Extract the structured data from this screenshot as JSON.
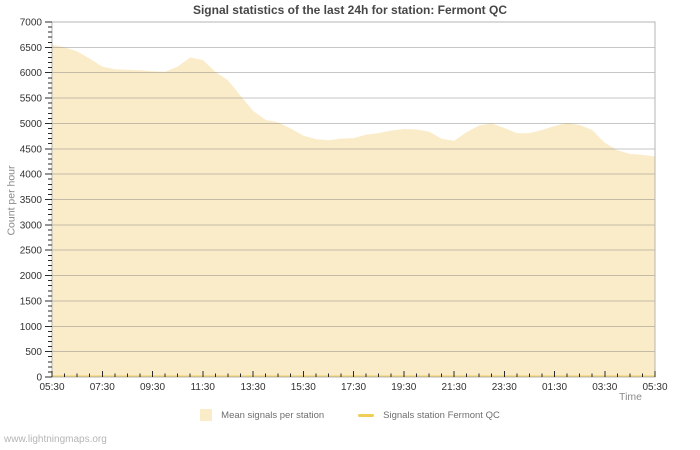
{
  "watermark": "www.lightningmaps.org",
  "chart_data": {
    "type": "area",
    "title": "Signal statistics of the last 24h for station: Fermont QC",
    "xlabel": "Time",
    "ylabel": "Count per hour",
    "ylim": [
      0,
      7000
    ],
    "y_major_step": 500,
    "y_minor_step": 100,
    "y_tick_labels": [
      "0",
      "500",
      "1000",
      "1500",
      "2000",
      "2500",
      "3000",
      "3500",
      "4000",
      "4500",
      "5000",
      "5500",
      "6000",
      "6500",
      "7000"
    ],
    "x_range_hours": 24,
    "x_major_every_hours": 2,
    "x_minor_every_hours": 0.5,
    "x_tick_labels": [
      "05:30",
      "07:30",
      "09:30",
      "11:30",
      "13:30",
      "15:30",
      "17:30",
      "19:30",
      "21:30",
      "23:30",
      "01:30",
      "03:30",
      "05:30"
    ],
    "grid": "horizontal-major",
    "legend_position": "bottom-center",
    "x_times": [
      "05:30",
      "06:00",
      "06:30",
      "07:00",
      "07:30",
      "08:00",
      "08:30",
      "09:00",
      "09:30",
      "10:00",
      "10:30",
      "11:00",
      "11:30",
      "12:00",
      "12:30",
      "13:00",
      "13:30",
      "14:00",
      "14:30",
      "15:00",
      "15:30",
      "16:00",
      "16:30",
      "17:00",
      "17:30",
      "18:00",
      "18:30",
      "19:00",
      "19:30",
      "20:00",
      "20:30",
      "21:00",
      "21:30",
      "22:00",
      "22:30",
      "23:00",
      "23:30",
      "00:00",
      "00:30",
      "01:00",
      "01:30",
      "02:00",
      "02:30",
      "03:00",
      "03:30",
      "04:00",
      "04:30",
      "05:00",
      "05:30"
    ],
    "series": [
      {
        "name": "Mean signals per station",
        "type": "area",
        "color": "#FBECC9",
        "values": [
          6550,
          6500,
          6420,
          6280,
          6120,
          6070,
          6060,
          6050,
          6030,
          6020,
          6120,
          6300,
          6250,
          6020,
          5850,
          5550,
          5250,
          5070,
          5020,
          4900,
          4760,
          4690,
          4670,
          4700,
          4710,
          4780,
          4810,
          4860,
          4890,
          4880,
          4840,
          4700,
          4655,
          4830,
          4960,
          5000,
          4910,
          4810,
          4810,
          4870,
          4950,
          5010,
          4970,
          4870,
          4620,
          4470,
          4400,
          4380,
          4350
        ]
      },
      {
        "name": "Signals station Fermont QC",
        "type": "line",
        "color": "#F0CE55",
        "values": [
          0,
          0,
          0,
          0,
          0,
          0,
          0,
          0,
          0,
          0,
          0,
          0,
          0,
          0,
          0,
          0,
          0,
          0,
          0,
          0,
          0,
          0,
          0,
          0,
          0,
          0,
          0,
          0,
          0,
          0,
          0,
          0,
          0,
          0,
          0,
          0,
          0,
          0,
          0,
          0,
          0,
          0,
          0,
          0,
          0,
          0,
          0,
          0,
          0
        ]
      }
    ],
    "colors": {
      "background": "#ffffff",
      "grid": "#c9c9c9",
      "axis_border": "#b5b5b5",
      "tick": "#2a2a2a",
      "tick_label": "#333333",
      "title": "#474747",
      "axis_title": "#8a8a8a",
      "legend_text": "#6e6e6e",
      "watermark": "#b5b5b5"
    }
  }
}
